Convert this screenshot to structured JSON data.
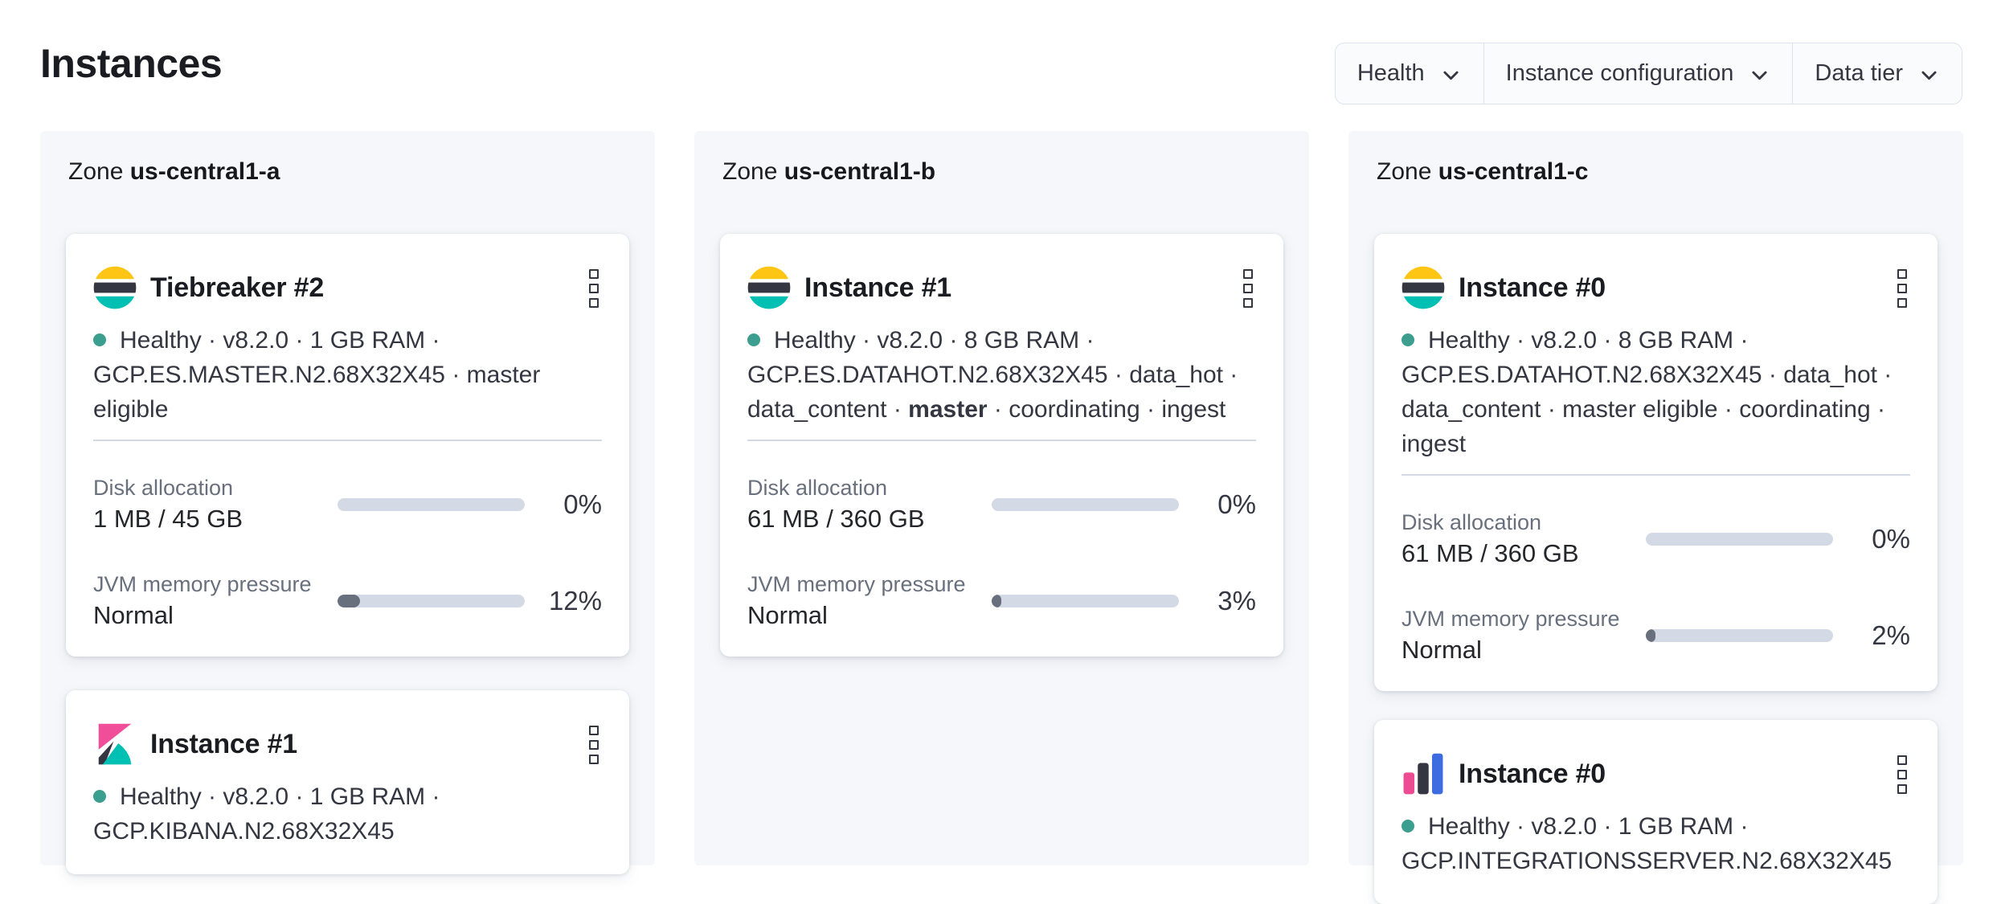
{
  "page": {
    "title": "Instances"
  },
  "filters": {
    "health": "Health",
    "instance_configuration": "Instance configuration",
    "data_tier": "Data tier"
  },
  "zones": [
    {
      "label_prefix": "Zone",
      "name": "us-central1-a",
      "cards": [
        {
          "product": "elasticsearch",
          "title": "Tiebreaker #2",
          "health": "Healthy",
          "status_line1": "Healthy · v8.2.0 · 1 GB RAM ·",
          "status_line2": "GCP.ES.MASTER.N2.68X32X45 · master eligible",
          "metrics": [
            {
              "label": "Disk allocation",
              "value": "1 MB / 45 GB",
              "percent": "0%",
              "fill": 0
            },
            {
              "label": "JVM memory pressure",
              "value": "Normal",
              "percent": "12%",
              "fill": 12
            }
          ]
        },
        {
          "product": "kibana",
          "title": "Instance #1",
          "health": "Healthy",
          "status_line1": "Healthy · v8.2.0 · 1 GB RAM ·",
          "status_line2": "GCP.KIBANA.N2.68X32X45"
        }
      ]
    },
    {
      "label_prefix": "Zone",
      "name": "us-central1-b",
      "cards": [
        {
          "product": "elasticsearch",
          "title": "Instance #1",
          "health": "Healthy",
          "status_line1": "Healthy · v8.2.0 · 8 GB RAM ·",
          "status_line2": "GCP.ES.DATAHOT.N2.68X32X45 · data_hot ·",
          "status_line3_pre": "data_content · ",
          "status_line3_bold": "master",
          "status_line3_post": " · coordinating · ingest",
          "metrics": [
            {
              "label": "Disk allocation",
              "value": "61 MB / 360 GB",
              "percent": "0%",
              "fill": 0
            },
            {
              "label": "JVM memory pressure",
              "value": "Normal",
              "percent": "3%",
              "fill": 3
            }
          ]
        }
      ]
    },
    {
      "label_prefix": "Zone",
      "name": "us-central1-c",
      "cards": [
        {
          "product": "elasticsearch",
          "title": "Instance #0",
          "health": "Healthy",
          "status_line1": "Healthy · v8.2.0 · 8 GB RAM ·",
          "status_line2": "GCP.ES.DATAHOT.N2.68X32X45 · data_hot ·",
          "status_line3": "data_content · master eligible · coordinating · ingest",
          "metrics": [
            {
              "label": "Disk allocation",
              "value": "61 MB / 360 GB",
              "percent": "0%",
              "fill": 0
            },
            {
              "label": "JVM memory pressure",
              "value": "Normal",
              "percent": "2%",
              "fill": 2
            }
          ]
        },
        {
          "product": "integrations-server",
          "title": "Instance #0",
          "health": "Healthy",
          "status_line1": "Healthy · v8.2.0 · 1 GB RAM ·",
          "status_line2": "GCP.INTEGRATIONSSERVER.N2.68X32X45"
        }
      ]
    }
  ],
  "colors": {
    "health_dot": "#3c9e8e",
    "bar_track": "#d3dae6",
    "bar_fill": "#69707d",
    "panel_bg": "#f5f7fa",
    "es_yellow": "#fec514",
    "es_dark": "#343741",
    "es_teal": "#00bfb3",
    "kibana_pink": "#f04e98",
    "apm_blue": "#3c6ce0"
  }
}
